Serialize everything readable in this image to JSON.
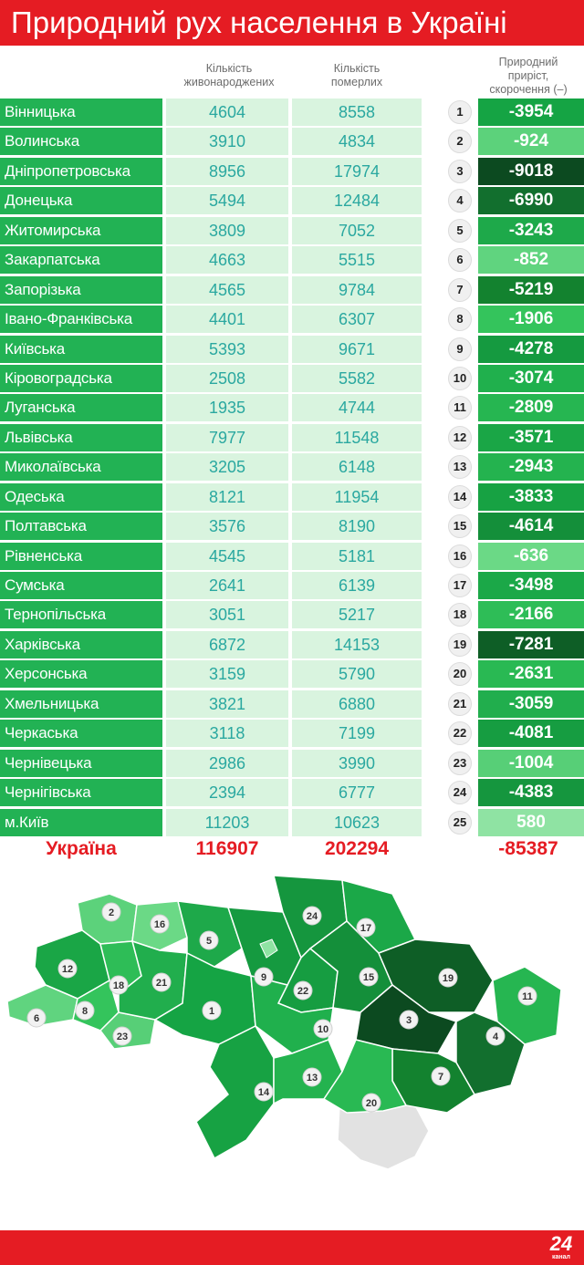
{
  "title": "Природний рух населення в Україні",
  "headers": {
    "births": [
      "Кількість",
      "живонароджених"
    ],
    "deaths": [
      "Кількість",
      "померлих"
    ],
    "growth": [
      "Природний",
      "приріст,",
      "скорочення (–)"
    ]
  },
  "colors": {
    "accent_red": "#e51c23",
    "region_green": "#22b254",
    "cell_light": "#d9f4df",
    "number_teal": "#2aa8a0"
  },
  "rows": [
    {
      "region": "Вінницька",
      "births": "4604",
      "deaths": "8558",
      "rank": "1",
      "growth": "-3954",
      "color": "#15a444"
    },
    {
      "region": "Волинська",
      "births": "3910",
      "deaths": "4834",
      "rank": "2",
      "growth": "-924",
      "color": "#5cd27b"
    },
    {
      "region": "Дніпропетровська",
      "births": "8956",
      "deaths": "17974",
      "rank": "3",
      "growth": "-9018",
      "color": "#0c4a20"
    },
    {
      "region": "Донецька",
      "births": "5494",
      "deaths": "12484",
      "rank": "4",
      "growth": "-6990",
      "color": "#126f2e"
    },
    {
      "region": "Житомирська",
      "births": "3809",
      "deaths": "7052",
      "rank": "5",
      "growth": "-3243",
      "color": "#1ea94a"
    },
    {
      "region": "Закарпатська",
      "births": "4663",
      "deaths": "5515",
      "rank": "6",
      "growth": "-852",
      "color": "#60d47f"
    },
    {
      "region": "Запорізька",
      "births": "4565",
      "deaths": "9784",
      "rank": "7",
      "growth": "-5219",
      "color": "#13822f"
    },
    {
      "region": "Івано-Франківська",
      "births": "4401",
      "deaths": "6307",
      "rank": "8",
      "growth": "-1906",
      "color": "#34c45c"
    },
    {
      "region": "Київська",
      "births": "5393",
      "deaths": "9671",
      "rank": "9",
      "growth": "-4278",
      "color": "#159a40"
    },
    {
      "region": "Кіровоградська",
      "births": "2508",
      "deaths": "5582",
      "rank": "10",
      "growth": "-3074",
      "color": "#20b04d"
    },
    {
      "region": "Луганська",
      "births": "1935",
      "deaths": "4744",
      "rank": "11",
      "growth": "-2809",
      "color": "#26b651"
    },
    {
      "region": "Львівська",
      "births": "7977",
      "deaths": "11548",
      "rank": "12",
      "growth": "-3571",
      "color": "#1aa646"
    },
    {
      "region": "Миколаївська",
      "births": "3205",
      "deaths": "6148",
      "rank": "13",
      "growth": "-2943",
      "color": "#24b34f"
    },
    {
      "region": "Одеська",
      "births": "8121",
      "deaths": "11954",
      "rank": "14",
      "growth": "-3833",
      "color": "#17a243"
    },
    {
      "region": "Полтавська",
      "births": "3576",
      "deaths": "8190",
      "rank": "15",
      "growth": "-4614",
      "color": "#148f3a"
    },
    {
      "region": "Рівненська",
      "births": "4545",
      "deaths": "5181",
      "rank": "16",
      "growth": "-636",
      "color": "#6bd986"
    },
    {
      "region": "Сумська",
      "births": "2641",
      "deaths": "6139",
      "rank": "17",
      "growth": "-3498",
      "color": "#1ba848"
    },
    {
      "region": "Тернопільська",
      "births": "3051",
      "deaths": "5217",
      "rank": "18",
      "growth": "-2166",
      "color": "#2ebd57"
    },
    {
      "region": "Харківська",
      "births": "6872",
      "deaths": "14153",
      "rank": "19",
      "growth": "-7281",
      "color": "#0e5e26"
    },
    {
      "region": "Херсонська",
      "births": "3159",
      "deaths": "5790",
      "rank": "20",
      "growth": "-2631",
      "color": "#29b953"
    },
    {
      "region": "Хмельницька",
      "births": "3821",
      "deaths": "6880",
      "rank": "21",
      "growth": "-3059",
      "color": "#21ae4d"
    },
    {
      "region": "Черкаська",
      "births": "3118",
      "deaths": "7199",
      "rank": "22",
      "growth": "-4081",
      "color": "#169d41"
    },
    {
      "region": "Чернівецька",
      "births": "2986",
      "deaths": "3990",
      "rank": "23",
      "growth": "-1004",
      "color": "#57cf77"
    },
    {
      "region": "Чернігівська",
      "births": "2394",
      "deaths": "6777",
      "rank": "24",
      "growth": "-4383",
      "color": "#15963e"
    },
    {
      "region": "м.Київ",
      "births": "11203",
      "deaths": "10623",
      "rank": "25",
      "growth": "580",
      "color": "#8fe3a3"
    }
  ],
  "totals": {
    "label": "Україна",
    "births": "116907",
    "deaths": "202294",
    "growth": "-85387"
  },
  "logo": {
    "number": "24",
    "sub": "канал"
  }
}
